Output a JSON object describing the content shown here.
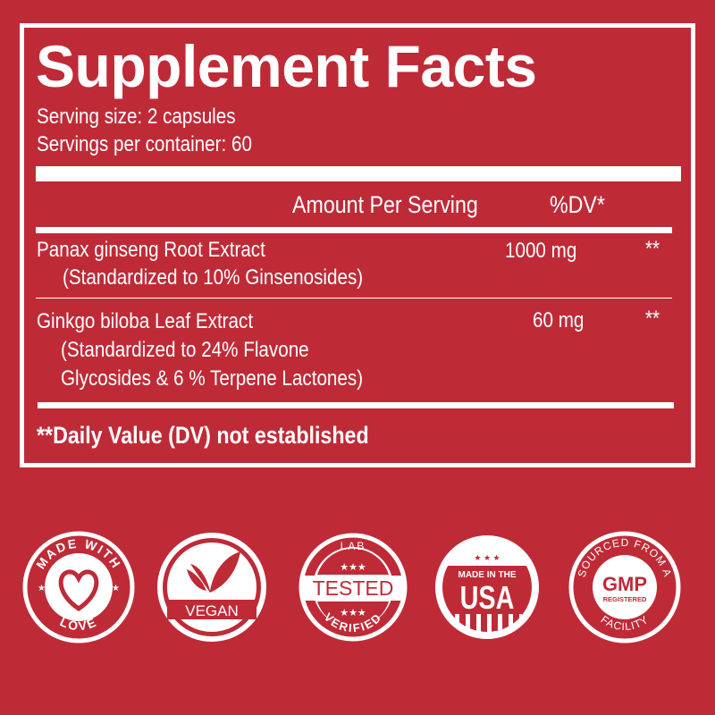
{
  "title": "Supplement Facts",
  "serving_size": "Serving size: 2 capsules",
  "servings_per_container": "Servings per container: 60",
  "header": {
    "amount": "Amount Per Serving",
    "dv": "%DV*"
  },
  "ingredients": [
    {
      "name": "Panax ginseng Root Extract",
      "detail": [
        "(Standardized to 10% Ginsenosides)"
      ],
      "amount": "1000 mg",
      "dv": "**"
    },
    {
      "name": "Ginkgo biloba Leaf Extract",
      "detail": [
        "(Standardized to 24% Flavone",
        "Glycosides & 6 % Terpene Lactones)"
      ],
      "amount": "60 mg",
      "dv": "**"
    }
  ],
  "footnote": "**Daily Value (DV) not established",
  "badges": [
    {
      "icon": "heart-icon",
      "top": "MADE WITH",
      "bottom": "LOVE"
    },
    {
      "icon": "leaf-icon",
      "label": "VEGAN"
    },
    {
      "icon": "stars-icon",
      "top": "LAB",
      "label": "TESTED",
      "bottom": "VERIFIED"
    },
    {
      "icon": "flag-icon",
      "top": "MADE IN THE",
      "label": "USA"
    },
    {
      "icon": "gmp-icon",
      "top": "SOURCED FROM A",
      "label": "GMP",
      "sub": "REGISTERED",
      "bottom": "FACILITY"
    }
  ],
  "colors": {
    "background": "#be2b37",
    "foreground": "#ffffff"
  }
}
